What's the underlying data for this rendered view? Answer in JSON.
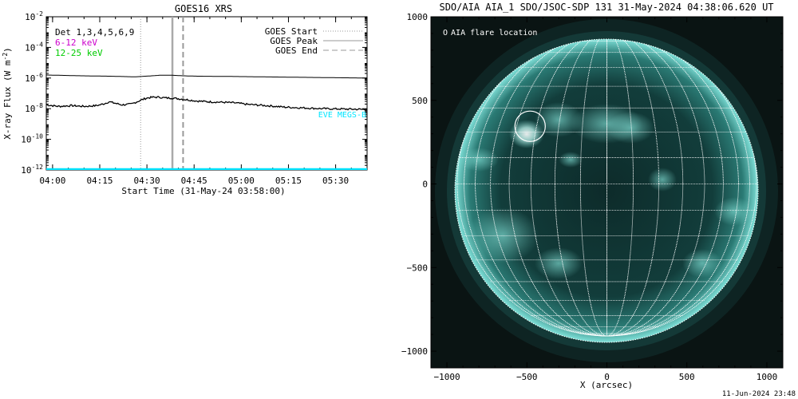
{
  "goes": {
    "title": "GOES16 XRS",
    "ylabel_main": "X-ray Flux (W m",
    "ylabel_sup": "-2",
    "ylabel_close": ")",
    "xlabel": "Start Time (31-May-24 03:58:00)",
    "legend_labels": [
      {
        "text": "Det 1,3,4,5,6,9",
        "color": "#000000"
      },
      {
        "text": "6-12 keV",
        "color": "#cc00cc"
      },
      {
        "text": "12-25 keV",
        "color": "#00cc00"
      }
    ],
    "legend_lines": [
      "GOES Start",
      "GOES Peak",
      "GOES End"
    ],
    "eve_label": "EVE MEGS-B",
    "colors": {
      "eve": "#00e5ff",
      "start": "#999999",
      "peak": "#aaaaaa",
      "end": "#999999"
    }
  },
  "chart_data": [
    {
      "type": "line",
      "title": "GOES16 XRS",
      "xlabel": "Start Time (31-May-24 03:58:00)",
      "ylabel": "X-ray Flux (W m^-2)",
      "x_ticks": [
        "04:00",
        "04:15",
        "04:30",
        "04:45",
        "05:00",
        "05:15",
        "05:30"
      ],
      "x_tick_minutes": [
        2,
        17,
        32,
        47,
        62,
        77,
        92
      ],
      "xlim_minutes_after_start": [
        0,
        102
      ],
      "y_scale": "log",
      "y_ticks": [
        "10^-12",
        "10^-10",
        "10^-8",
        "10^-6",
        "10^-4",
        "10^-2"
      ],
      "ylim_log10": [
        -12,
        -2
      ],
      "series": [
        {
          "style": "line",
          "color": "#000000",
          "x_minutes": [
            0,
            10,
            20,
            28,
            30,
            34,
            36,
            40,
            43,
            48,
            60,
            80,
            102
          ],
          "log10_y": [
            -5.8,
            -5.85,
            -5.88,
            -5.92,
            -5.9,
            -5.85,
            -5.82,
            -5.82,
            -5.85,
            -5.88,
            -5.9,
            -5.95,
            -6.0
          ]
        },
        {
          "style": "dots",
          "color": "#000000",
          "x_minutes": [
            0,
            4,
            8,
            12,
            16,
            18,
            20,
            22,
            24,
            27,
            30,
            32,
            34,
            36,
            38,
            40,
            42,
            45,
            48,
            52,
            56,
            60,
            64,
            70,
            76,
            82,
            88,
            94,
            102
          ],
          "log10_y": [
            -7.75,
            -7.85,
            -7.8,
            -7.85,
            -7.8,
            -7.7,
            -7.55,
            -7.65,
            -7.75,
            -7.7,
            -7.45,
            -7.3,
            -7.25,
            -7.25,
            -7.3,
            -7.3,
            -7.35,
            -7.42,
            -7.5,
            -7.55,
            -7.58,
            -7.62,
            -7.72,
            -7.8,
            -7.9,
            -7.95,
            -8.0,
            -8.02,
            -8.05
          ]
        },
        {
          "name": "EVE MEGS-B",
          "style": "line",
          "color": "#00e5ff",
          "x_minutes": [
            0,
            102
          ],
          "log10_y": [
            -11.95,
            -11.95
          ]
        }
      ],
      "markers": [
        {
          "name": "GOES Start",
          "x_minute": 30,
          "style": "dotted"
        },
        {
          "name": "GOES Peak",
          "x_minute": 40.1,
          "style": "solid"
        },
        {
          "name": "GOES End",
          "x_minute": 43.5,
          "style": "dashed"
        }
      ]
    },
    {
      "type": "image",
      "title": "SDO/AIA AIA_1 SDO/JSOC-SDP 131 31-May-2024 04:38:06.620 UT",
      "xlabel": "X (arcsec)",
      "ylabel": "",
      "x_ticks": [
        -1000,
        -500,
        0,
        500,
        1000
      ],
      "y_ticks": [
        -1000,
        -500,
        0,
        500,
        1000
      ],
      "xlim": [
        -1100,
        1100
      ],
      "ylim": [
        -1100,
        1000
      ],
      "solar_radius_arcsec": 950,
      "grid": true,
      "legend": "top-left",
      "legend_label": "AIA flare location",
      "flare_location_arcsec": [
        -480,
        345
      ],
      "flare_circle_radius_arcsec": 95
    }
  ],
  "aia": {
    "title": "SDO/AIA AIA_1 SDO/JSOC-SDP 131 31-May-2024 04:38:06.620 UT",
    "xlabel": "X (arcsec)",
    "legend_label": "AIA flare location",
    "legend_symbol": "O",
    "timestamp": "11-Jun-2024 23:48"
  }
}
